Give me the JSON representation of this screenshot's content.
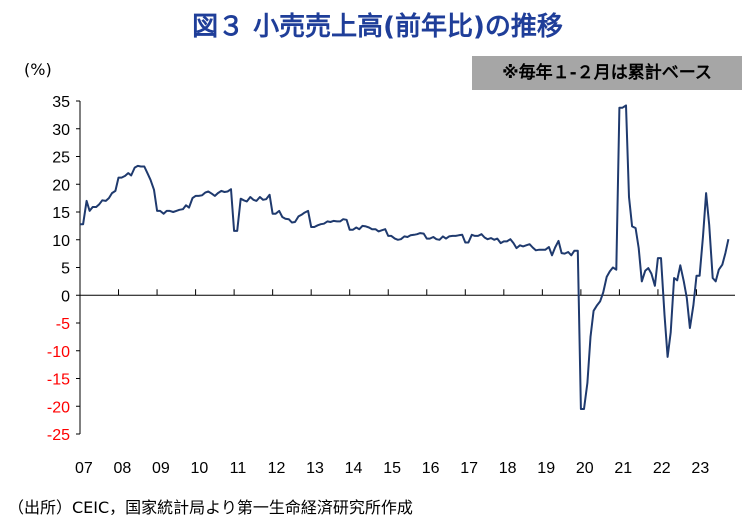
{
  "title": "図３ 小売売上高(前年比)の推移",
  "note": "※毎年１-２月は累計ベース",
  "unit_label": "(%)",
  "source": "（出所）CEIC，国家統計局より第一生命経済研究所作成",
  "colors": {
    "title": "#1f3e99",
    "line": "#1f3a6e",
    "negative_ticks": "#ff0000",
    "note_bg": "#a6a6a6"
  },
  "chart_data": {
    "type": "line",
    "title": "図３ 小売売上高(前年比)の推移",
    "ylabel": "(%)",
    "xlabel": "",
    "ylim": [
      -25,
      35
    ],
    "yticks": [
      35,
      30,
      25,
      20,
      15,
      10,
      5,
      0,
      -5,
      -10,
      -15,
      -20,
      -25
    ],
    "xlim": [
      2007.0,
      2024.0
    ],
    "xtick_labels": [
      "07",
      "08",
      "09",
      "10",
      "11",
      "12",
      "13",
      "14",
      "15",
      "16",
      "17",
      "18",
      "19",
      "20",
      "21",
      "22",
      "23"
    ],
    "grid": false,
    "series": [
      {
        "points": [
          [
            2007.0,
            12.8
          ],
          [
            2007.08,
            12.8
          ],
          [
            2007.17,
            17.0
          ],
          [
            2007.25,
            15.2
          ],
          [
            2007.33,
            15.9
          ],
          [
            2007.42,
            15.9
          ],
          [
            2007.5,
            16.4
          ],
          [
            2007.58,
            17.1
          ],
          [
            2007.67,
            17.0
          ],
          [
            2007.75,
            17.5
          ],
          [
            2007.83,
            18.4
          ],
          [
            2007.92,
            18.8
          ],
          [
            2008.0,
            21.2
          ],
          [
            2008.08,
            21.2
          ],
          [
            2008.17,
            21.5
          ],
          [
            2008.25,
            22.0
          ],
          [
            2008.33,
            21.6
          ],
          [
            2008.42,
            23.0
          ],
          [
            2008.5,
            23.3
          ],
          [
            2008.58,
            23.2
          ],
          [
            2008.67,
            23.2
          ],
          [
            2008.75,
            22.0
          ],
          [
            2008.83,
            20.8
          ],
          [
            2008.92,
            19.0
          ],
          [
            2009.0,
            15.2
          ],
          [
            2009.08,
            15.2
          ],
          [
            2009.17,
            14.7
          ],
          [
            2009.25,
            15.2
          ],
          [
            2009.33,
            15.2
          ],
          [
            2009.42,
            15.0
          ],
          [
            2009.5,
            15.2
          ],
          [
            2009.58,
            15.4
          ],
          [
            2009.67,
            15.5
          ],
          [
            2009.75,
            16.2
          ],
          [
            2009.83,
            15.8
          ],
          [
            2009.92,
            17.5
          ],
          [
            2010.0,
            17.9
          ],
          [
            2010.08,
            17.9
          ],
          [
            2010.17,
            18.0
          ],
          [
            2010.25,
            18.5
          ],
          [
            2010.33,
            18.7
          ],
          [
            2010.42,
            18.3
          ],
          [
            2010.5,
            17.9
          ],
          [
            2010.58,
            18.4
          ],
          [
            2010.67,
            18.8
          ],
          [
            2010.75,
            18.6
          ],
          [
            2010.83,
            18.7
          ],
          [
            2010.92,
            19.1
          ],
          [
            2011.0,
            11.6
          ],
          [
            2011.08,
            11.6
          ],
          [
            2011.17,
            17.4
          ],
          [
            2011.25,
            17.1
          ],
          [
            2011.33,
            16.9
          ],
          [
            2011.42,
            17.7
          ],
          [
            2011.5,
            17.2
          ],
          [
            2011.58,
            17.0
          ],
          [
            2011.67,
            17.7
          ],
          [
            2011.75,
            17.2
          ],
          [
            2011.83,
            17.3
          ],
          [
            2011.92,
            18.1
          ],
          [
            2012.0,
            14.7
          ],
          [
            2012.08,
            14.7
          ],
          [
            2012.17,
            15.2
          ],
          [
            2012.25,
            14.1
          ],
          [
            2012.33,
            13.8
          ],
          [
            2012.42,
            13.7
          ],
          [
            2012.5,
            13.1
          ],
          [
            2012.58,
            13.2
          ],
          [
            2012.67,
            14.2
          ],
          [
            2012.75,
            14.5
          ],
          [
            2012.83,
            14.9
          ],
          [
            2012.92,
            15.2
          ],
          [
            2013.0,
            12.3
          ],
          [
            2013.08,
            12.3
          ],
          [
            2013.17,
            12.6
          ],
          [
            2013.25,
            12.8
          ],
          [
            2013.33,
            12.9
          ],
          [
            2013.42,
            13.3
          ],
          [
            2013.5,
            13.2
          ],
          [
            2013.58,
            13.4
          ],
          [
            2013.67,
            13.3
          ],
          [
            2013.75,
            13.3
          ],
          [
            2013.83,
            13.7
          ],
          [
            2013.92,
            13.6
          ],
          [
            2014.0,
            11.8
          ],
          [
            2014.08,
            11.8
          ],
          [
            2014.17,
            12.2
          ],
          [
            2014.25,
            11.9
          ],
          [
            2014.33,
            12.5
          ],
          [
            2014.42,
            12.4
          ],
          [
            2014.5,
            12.2
          ],
          [
            2014.58,
            11.9
          ],
          [
            2014.67,
            11.9
          ],
          [
            2014.75,
            11.5
          ],
          [
            2014.83,
            11.7
          ],
          [
            2014.92,
            11.9
          ],
          [
            2015.0,
            10.7
          ],
          [
            2015.08,
            10.7
          ],
          [
            2015.17,
            10.2
          ],
          [
            2015.25,
            10.0
          ],
          [
            2015.33,
            10.1
          ],
          [
            2015.42,
            10.6
          ],
          [
            2015.5,
            10.5
          ],
          [
            2015.58,
            10.8
          ],
          [
            2015.67,
            10.9
          ],
          [
            2015.75,
            11.0
          ],
          [
            2015.83,
            11.2
          ],
          [
            2015.92,
            11.1
          ],
          [
            2016.0,
            10.2
          ],
          [
            2016.08,
            10.2
          ],
          [
            2016.17,
            10.5
          ],
          [
            2016.25,
            10.1
          ],
          [
            2016.33,
            10.0
          ],
          [
            2016.42,
            10.6
          ],
          [
            2016.5,
            10.2
          ],
          [
            2016.58,
            10.6
          ],
          [
            2016.67,
            10.7
          ],
          [
            2016.75,
            10.7
          ],
          [
            2016.83,
            10.8
          ],
          [
            2016.92,
            10.9
          ],
          [
            2017.0,
            9.5
          ],
          [
            2017.08,
            9.5
          ],
          [
            2017.17,
            10.9
          ],
          [
            2017.25,
            10.7
          ],
          [
            2017.33,
            10.7
          ],
          [
            2017.42,
            11.0
          ],
          [
            2017.5,
            10.4
          ],
          [
            2017.58,
            10.1
          ],
          [
            2017.67,
            10.3
          ],
          [
            2017.75,
            10.0
          ],
          [
            2017.83,
            10.2
          ],
          [
            2017.92,
            9.4
          ],
          [
            2018.0,
            9.7
          ],
          [
            2018.08,
            9.7
          ],
          [
            2018.17,
            10.1
          ],
          [
            2018.25,
            9.4
          ],
          [
            2018.33,
            8.5
          ],
          [
            2018.42,
            9.0
          ],
          [
            2018.5,
            8.8
          ],
          [
            2018.58,
            9.0
          ],
          [
            2018.67,
            9.2
          ],
          [
            2018.75,
            8.6
          ],
          [
            2018.83,
            8.1
          ],
          [
            2018.92,
            8.2
          ],
          [
            2019.0,
            8.2
          ],
          [
            2019.08,
            8.2
          ],
          [
            2019.17,
            8.7
          ],
          [
            2019.25,
            7.2
          ],
          [
            2019.33,
            8.6
          ],
          [
            2019.42,
            9.8
          ],
          [
            2019.5,
            7.6
          ],
          [
            2019.58,
            7.5
          ],
          [
            2019.67,
            7.8
          ],
          [
            2019.75,
            7.2
          ],
          [
            2019.83,
            8.0
          ],
          [
            2019.92,
            8.0
          ],
          [
            2020.0,
            -20.5
          ],
          [
            2020.08,
            -20.5
          ],
          [
            2020.17,
            -15.8
          ],
          [
            2020.25,
            -7.5
          ],
          [
            2020.33,
            -2.8
          ],
          [
            2020.42,
            -1.8
          ],
          [
            2020.5,
            -1.1
          ],
          [
            2020.58,
            0.5
          ],
          [
            2020.67,
            3.3
          ],
          [
            2020.75,
            4.3
          ],
          [
            2020.83,
            5.0
          ],
          [
            2020.92,
            4.6
          ],
          [
            2021.0,
            33.8
          ],
          [
            2021.08,
            33.8
          ],
          [
            2021.17,
            34.2
          ],
          [
            2021.25,
            17.7
          ],
          [
            2021.33,
            12.4
          ],
          [
            2021.42,
            12.1
          ],
          [
            2021.5,
            8.5
          ],
          [
            2021.58,
            2.5
          ],
          [
            2021.67,
            4.4
          ],
          [
            2021.75,
            4.9
          ],
          [
            2021.83,
            3.9
          ],
          [
            2021.92,
            1.7
          ],
          [
            2022.0,
            6.7
          ],
          [
            2022.08,
            6.7
          ],
          [
            2022.17,
            -3.5
          ],
          [
            2022.25,
            -11.1
          ],
          [
            2022.33,
            -6.7
          ],
          [
            2022.42,
            3.1
          ],
          [
            2022.5,
            2.7
          ],
          [
            2022.58,
            5.4
          ],
          [
            2022.67,
            2.5
          ],
          [
            2022.75,
            -0.5
          ],
          [
            2022.83,
            -5.9
          ],
          [
            2022.92,
            -1.8
          ],
          [
            2023.0,
            3.5
          ],
          [
            2023.08,
            3.5
          ],
          [
            2023.17,
            10.6
          ],
          [
            2023.25,
            18.4
          ],
          [
            2023.33,
            12.7
          ],
          [
            2023.42,
            3.1
          ],
          [
            2023.5,
            2.5
          ],
          [
            2023.58,
            4.6
          ],
          [
            2023.67,
            5.5
          ],
          [
            2023.75,
            7.6
          ],
          [
            2023.83,
            10.1
          ]
        ]
      }
    ]
  }
}
